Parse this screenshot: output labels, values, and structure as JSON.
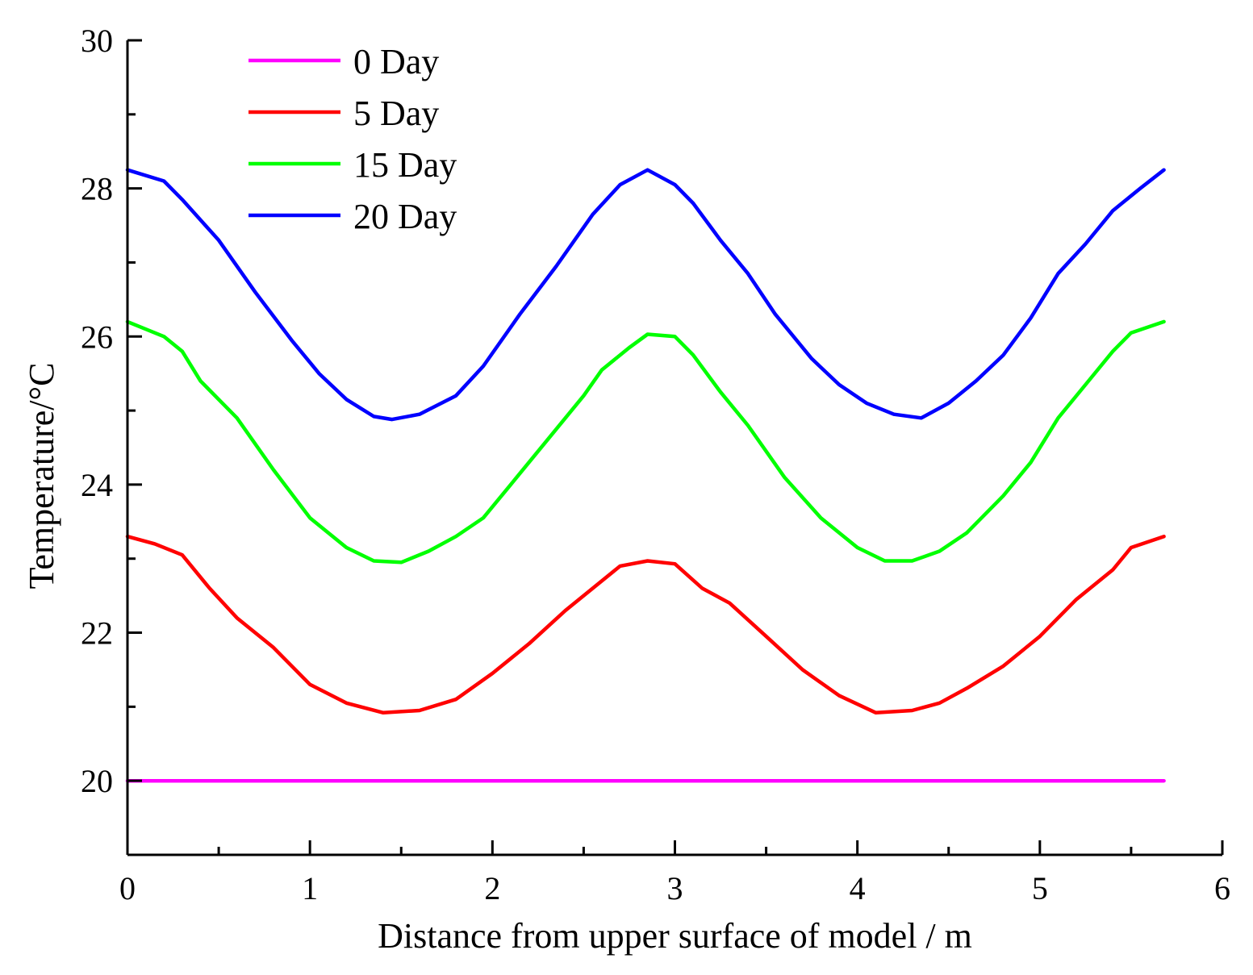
{
  "chart_data": {
    "type": "line",
    "title": "",
    "xlabel": "Distance from upper surface of model / m",
    "ylabel": "Temperature/°C",
    "xlim": [
      0,
      6
    ],
    "ylim": [
      19,
      30
    ],
    "x_major_ticks": [
      0,
      1,
      2,
      3,
      4,
      5,
      6
    ],
    "x_tick_labels": [
      "0",
      "1",
      "2",
      "3",
      "4",
      "5",
      "6"
    ],
    "y_major_ticks": [
      20,
      22,
      24,
      26,
      28,
      30
    ],
    "y_tick_labels": [
      "20",
      "22",
      "24",
      "26",
      "28",
      "30"
    ],
    "legend_position": "top-left",
    "grid": false,
    "series": [
      {
        "name": "0 Day",
        "color": "#ff00ff",
        "x": [
          0,
          5.68
        ],
        "y": [
          20.0,
          20.0
        ]
      },
      {
        "name": "5 Day",
        "color": "#ff0000",
        "x": [
          0,
          0.15,
          0.3,
          0.45,
          0.6,
          0.8,
          1.0,
          1.2,
          1.4,
          1.6,
          1.8,
          2.0,
          2.2,
          2.4,
          2.6,
          2.7,
          2.85,
          3.0,
          3.15,
          3.3,
          3.5,
          3.7,
          3.9,
          4.1,
          4.3,
          4.45,
          4.6,
          4.8,
          5.0,
          5.2,
          5.4,
          5.5,
          5.68
        ],
        "y": [
          23.3,
          23.2,
          23.05,
          22.6,
          22.2,
          21.8,
          21.3,
          21.05,
          20.92,
          20.95,
          21.1,
          21.45,
          21.85,
          22.3,
          22.7,
          22.9,
          22.97,
          22.93,
          22.6,
          22.4,
          21.95,
          21.5,
          21.15,
          20.92,
          20.95,
          21.05,
          21.25,
          21.55,
          21.95,
          22.45,
          22.85,
          23.15,
          23.3
        ]
      },
      {
        "name": "15 Day",
        "color": "#00ff00",
        "x": [
          0,
          0.2,
          0.3,
          0.4,
          0.6,
          0.8,
          1.0,
          1.2,
          1.35,
          1.5,
          1.65,
          1.8,
          1.95,
          2.1,
          2.3,
          2.5,
          2.6,
          2.75,
          2.85,
          3.0,
          3.1,
          3.25,
          3.4,
          3.6,
          3.8,
          4.0,
          4.15,
          4.3,
          4.45,
          4.6,
          4.8,
          4.95,
          5.1,
          5.25,
          5.4,
          5.5,
          5.68
        ],
        "y": [
          26.2,
          26.0,
          25.8,
          25.4,
          24.9,
          24.2,
          23.55,
          23.15,
          22.97,
          22.95,
          23.1,
          23.3,
          23.55,
          24.0,
          24.6,
          25.2,
          25.55,
          25.85,
          26.03,
          26.0,
          25.75,
          25.25,
          24.8,
          24.1,
          23.55,
          23.15,
          22.97,
          22.97,
          23.1,
          23.35,
          23.85,
          24.3,
          24.9,
          25.35,
          25.8,
          26.05,
          26.2
        ]
      },
      {
        "name": "20 Day",
        "color": "#0000ff",
        "x": [
          0,
          0.2,
          0.3,
          0.5,
          0.7,
          0.9,
          1.05,
          1.2,
          1.35,
          1.45,
          1.6,
          1.8,
          1.95,
          2.15,
          2.35,
          2.55,
          2.7,
          2.85,
          3.0,
          3.1,
          3.25,
          3.4,
          3.55,
          3.75,
          3.9,
          4.05,
          4.2,
          4.35,
          4.5,
          4.65,
          4.8,
          4.95,
          5.1,
          5.25,
          5.4,
          5.55,
          5.68
        ],
        "y": [
          28.25,
          28.1,
          27.85,
          27.3,
          26.6,
          25.95,
          25.5,
          25.15,
          24.92,
          24.88,
          24.95,
          25.2,
          25.6,
          26.3,
          26.95,
          27.65,
          28.05,
          28.25,
          28.05,
          27.8,
          27.3,
          26.85,
          26.3,
          25.7,
          25.35,
          25.1,
          24.95,
          24.9,
          25.1,
          25.4,
          25.75,
          26.25,
          26.85,
          27.25,
          27.7,
          28.0,
          28.25
        ]
      }
    ]
  }
}
